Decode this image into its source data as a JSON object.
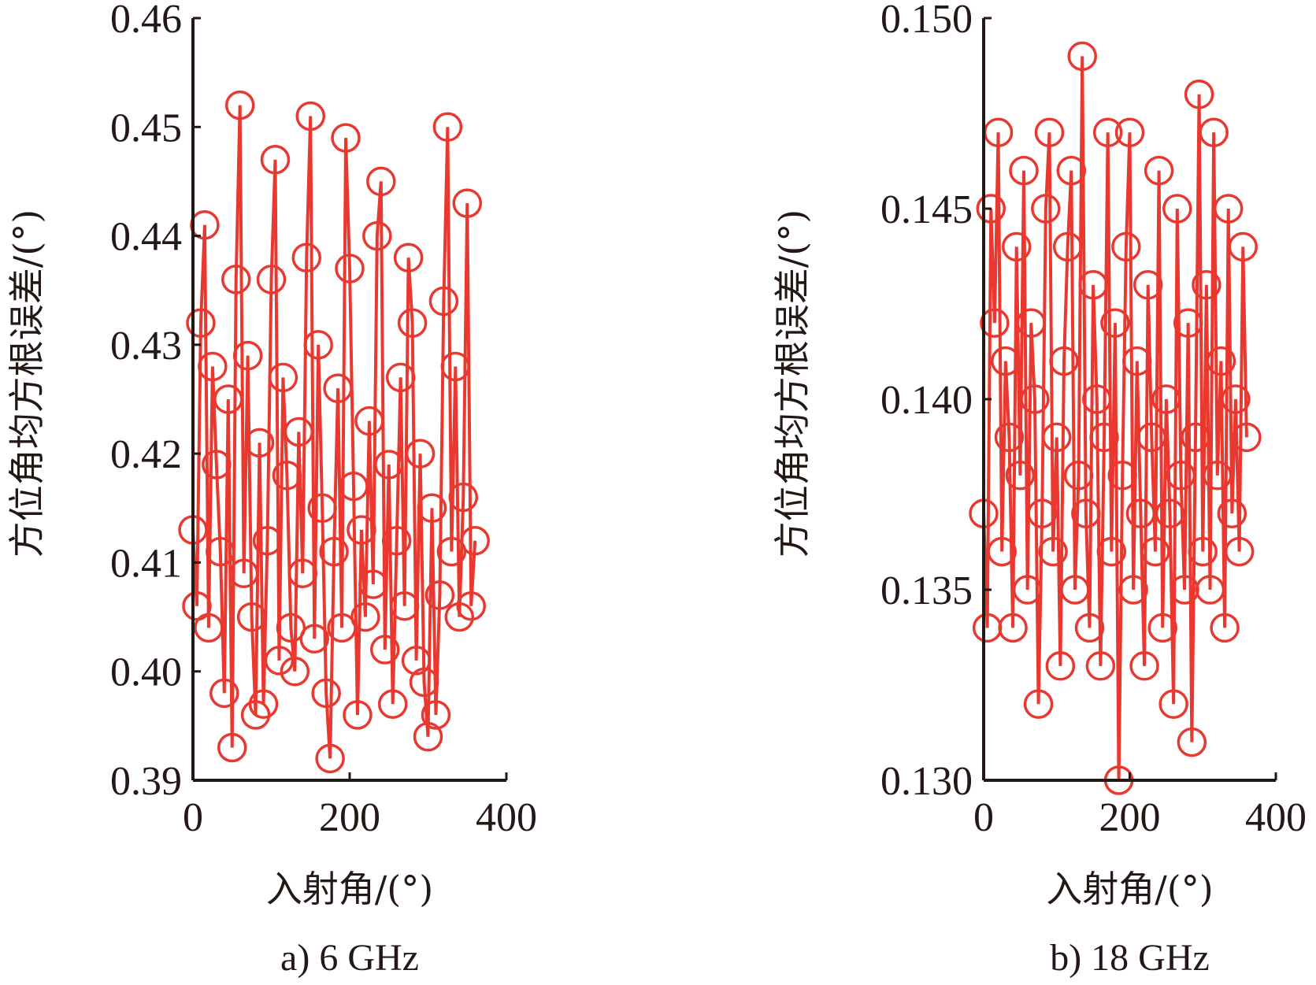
{
  "chart_data": [
    {
      "type": "line",
      "marker": "circle",
      "caption": "a) 6 GHz",
      "xlabel": "入射角/(°)",
      "ylabel": "方位角均方根误差/(°)",
      "xlim": [
        0,
        400
      ],
      "ylim": [
        0.39,
        0.46
      ],
      "xticks": [
        "0",
        "200",
        "400"
      ],
      "xtick_values": [
        0,
        200,
        400
      ],
      "yticks": [
        "0.39",
        "0.40",
        "0.41",
        "0.42",
        "0.43",
        "0.44",
        "0.45",
        "0.46"
      ],
      "ytick_values": [
        0.39,
        0.4,
        0.41,
        0.42,
        0.43,
        0.44,
        0.45,
        0.46
      ],
      "color": "#e8382f",
      "x": [
        0,
        5,
        10,
        15,
        20,
        25,
        30,
        35,
        40,
        45,
        50,
        55,
        60,
        65,
        70,
        75,
        80,
        85,
        90,
        95,
        100,
        105,
        110,
        115,
        120,
        125,
        130,
        135,
        140,
        145,
        150,
        155,
        160,
        165,
        170,
        175,
        180,
        185,
        190,
        195,
        200,
        205,
        210,
        215,
        220,
        225,
        230,
        235,
        240,
        245,
        250,
        255,
        260,
        265,
        270,
        275,
        280,
        285,
        290,
        295,
        300,
        305,
        310,
        315,
        320,
        325,
        330,
        335,
        340,
        345,
        350,
        355,
        360
      ],
      "y": [
        0.413,
        0.406,
        0.432,
        0.441,
        0.404,
        0.428,
        0.419,
        0.411,
        0.398,
        0.425,
        0.393,
        0.436,
        0.452,
        0.409,
        0.429,
        0.405,
        0.396,
        0.421,
        0.397,
        0.412,
        0.436,
        0.447,
        0.401,
        0.427,
        0.418,
        0.404,
        0.4,
        0.422,
        0.409,
        0.438,
        0.451,
        0.403,
        0.43,
        0.415,
        0.398,
        0.392,
        0.411,
        0.426,
        0.404,
        0.449,
        0.437,
        0.417,
        0.396,
        0.413,
        0.405,
        0.423,
        0.408,
        0.44,
        0.445,
        0.402,
        0.419,
        0.397,
        0.412,
        0.427,
        0.406,
        0.438,
        0.432,
        0.401,
        0.42,
        0.399,
        0.394,
        0.415,
        0.396,
        0.407,
        0.434,
        0.45,
        0.411,
        0.428,
        0.405,
        0.416,
        0.443,
        0.406,
        0.412
      ]
    },
    {
      "type": "line",
      "marker": "circle",
      "caption": "b) 18 GHz",
      "xlabel": "入射角/(°)",
      "ylabel": "方位角均方根误差/(°)",
      "xlim": [
        0,
        400
      ],
      "ylim": [
        0.13,
        0.15
      ],
      "xticks": [
        "0",
        "200",
        "400"
      ],
      "xtick_values": [
        0,
        200,
        400
      ],
      "yticks": [
        "0.130",
        "0.135",
        "0.140",
        "0.145",
        "0.150"
      ],
      "ytick_values": [
        0.13,
        0.135,
        0.14,
        0.145,
        0.15
      ],
      "color": "#e8382f",
      "x": [
        0,
        5,
        10,
        15,
        20,
        25,
        30,
        35,
        40,
        45,
        50,
        55,
        60,
        65,
        70,
        75,
        80,
        85,
        90,
        95,
        100,
        105,
        110,
        115,
        120,
        125,
        130,
        135,
        140,
        145,
        150,
        155,
        160,
        165,
        170,
        175,
        180,
        185,
        190,
        195,
        200,
        205,
        210,
        215,
        220,
        225,
        230,
        235,
        240,
        245,
        250,
        255,
        260,
        265,
        270,
        275,
        280,
        285,
        290,
        295,
        300,
        305,
        310,
        315,
        320,
        325,
        330,
        335,
        340,
        345,
        350,
        355,
        360
      ],
      "y": [
        0.137,
        0.134,
        0.145,
        0.142,
        0.147,
        0.136,
        0.141,
        0.139,
        0.134,
        0.144,
        0.138,
        0.146,
        0.135,
        0.142,
        0.14,
        0.132,
        0.137,
        0.145,
        0.147,
        0.136,
        0.139,
        0.133,
        0.141,
        0.144,
        0.146,
        0.135,
        0.138,
        0.149,
        0.137,
        0.134,
        0.143,
        0.14,
        0.133,
        0.139,
        0.147,
        0.136,
        0.142,
        0.13,
        0.138,
        0.144,
        0.147,
        0.135,
        0.141,
        0.137,
        0.133,
        0.143,
        0.139,
        0.136,
        0.146,
        0.134,
        0.14,
        0.137,
        0.132,
        0.145,
        0.138,
        0.135,
        0.142,
        0.131,
        0.139,
        0.148,
        0.136,
        0.143,
        0.135,
        0.147,
        0.138,
        0.141,
        0.134,
        0.145,
        0.137,
        0.14,
        0.136,
        0.144,
        0.139
      ]
    }
  ]
}
